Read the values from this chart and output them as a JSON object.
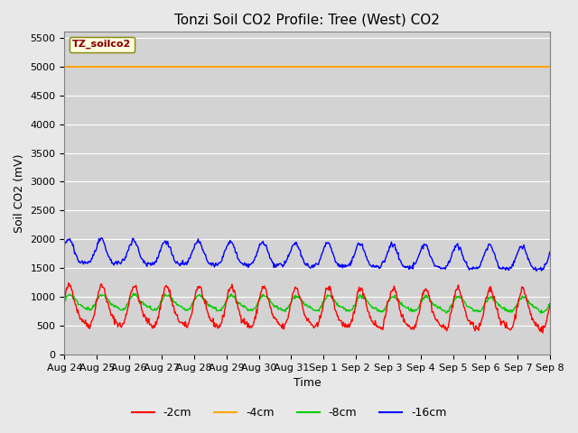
{
  "title": "Tonzi Soil CO2 Profile: Tree (West) CO2",
  "ylabel": "Soil CO2 (mV)",
  "xlabel": "Time",
  "legend_label": "TZ_soilco2",
  "series_labels": [
    "-2cm",
    "-4cm",
    "-8cm",
    "-16cm"
  ],
  "series_colors": [
    "#ff0000",
    "#ffa500",
    "#00cc00",
    "#0000ff"
  ],
  "ylim": [
    0,
    5600
  ],
  "yticks": [
    0,
    500,
    1000,
    1500,
    2000,
    2500,
    3000,
    3500,
    4000,
    4500,
    5000,
    5500
  ],
  "flat_value": 5000,
  "bg_color": "#e8e8e8",
  "plot_bg_color": "#d3d3d3",
  "num_days": 15,
  "start_day": 24,
  "x_labels": [
    "Aug 24",
    "Aug 25",
    "Aug 26",
    "Aug 27",
    "Aug 28",
    "Aug 29",
    "Aug 30",
    "Aug 31",
    "Sep 1",
    "Sep 2",
    "Sep 3",
    "Sep 4",
    "Sep 5",
    "Sep 6",
    "Sep 7",
    "Sep 8"
  ]
}
